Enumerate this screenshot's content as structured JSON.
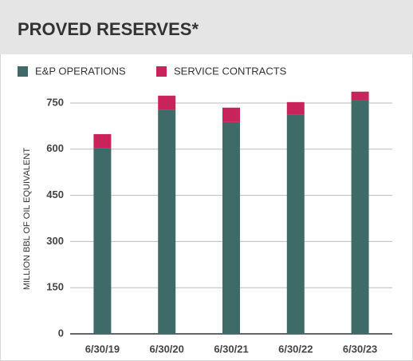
{
  "chart_data": {
    "type": "bar",
    "stacked": true,
    "title": "PROVED RESERVES*",
    "y_label": "MILLION BBL OF OIL EQUIVALENT",
    "categories": [
      "6/30/19",
      "6/30/20",
      "6/30/21",
      "6/30/22",
      "6/30/23"
    ],
    "series": [
      {
        "name": "E&P OPERATIONS",
        "color": "#3e6b67",
        "values": [
          603,
          727,
          688,
          712,
          758
        ]
      },
      {
        "name": "SERVICE CONTRACTS",
        "color": "#c8235b",
        "values": [
          46,
          47,
          47,
          41,
          29
        ]
      }
    ],
    "ylim": [
      0,
      750
    ],
    "yticks": [
      0,
      150,
      300,
      450,
      600,
      750
    ],
    "grid": true
  }
}
